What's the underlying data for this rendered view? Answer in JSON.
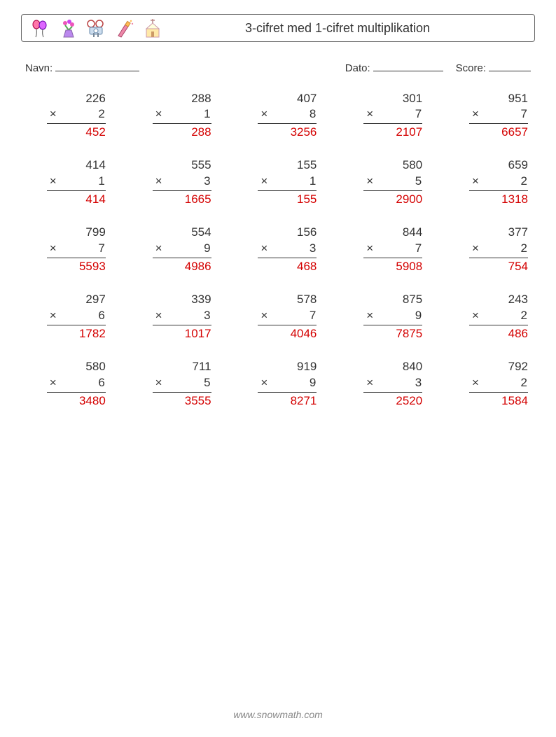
{
  "title": "3-cifret med 1-cifret multiplikation",
  "fields": {
    "name_label": "Navn:",
    "date_label": "Dato:",
    "score_label": "Score:"
  },
  "operator": "×",
  "answer_color": "#d40000",
  "text_color": "#333333",
  "line_color": "#333333",
  "problem_font_size": 17,
  "columns": 5,
  "rows": 5,
  "problems": [
    {
      "a": "226",
      "b": "2",
      "ans": "452"
    },
    {
      "a": "288",
      "b": "1",
      "ans": "288"
    },
    {
      "a": "407",
      "b": "8",
      "ans": "3256"
    },
    {
      "a": "301",
      "b": "7",
      "ans": "2107"
    },
    {
      "a": "951",
      "b": "7",
      "ans": "6657"
    },
    {
      "a": "414",
      "b": "1",
      "ans": "414"
    },
    {
      "a": "555",
      "b": "3",
      "ans": "1665"
    },
    {
      "a": "155",
      "b": "1",
      "ans": "155"
    },
    {
      "a": "580",
      "b": "5",
      "ans": "2900"
    },
    {
      "a": "659",
      "b": "2",
      "ans": "1318"
    },
    {
      "a": "799",
      "b": "7",
      "ans": "5593"
    },
    {
      "a": "554",
      "b": "9",
      "ans": "4986"
    },
    {
      "a": "156",
      "b": "3",
      "ans": "468"
    },
    {
      "a": "844",
      "b": "7",
      "ans": "5908"
    },
    {
      "a": "377",
      "b": "2",
      "ans": "754"
    },
    {
      "a": "297",
      "b": "6",
      "ans": "1782"
    },
    {
      "a": "339",
      "b": "3",
      "ans": "1017"
    },
    {
      "a": "578",
      "b": "7",
      "ans": "4046"
    },
    {
      "a": "875",
      "b": "9",
      "ans": "7875"
    },
    {
      "a": "243",
      "b": "2",
      "ans": "486"
    },
    {
      "a": "580",
      "b": "6",
      "ans": "3480"
    },
    {
      "a": "711",
      "b": "5",
      "ans": "3555"
    },
    {
      "a": "919",
      "b": "9",
      "ans": "8271"
    },
    {
      "a": "840",
      "b": "3",
      "ans": "2520"
    },
    {
      "a": "792",
      "b": "2",
      "ans": "1584"
    }
  ],
  "footer_text": "www.snowmath.com",
  "icons": [
    {
      "name": "balloons-icon"
    },
    {
      "name": "flowers-icon"
    },
    {
      "name": "camera-icon"
    },
    {
      "name": "bottle-icon"
    },
    {
      "name": "church-icon"
    }
  ]
}
